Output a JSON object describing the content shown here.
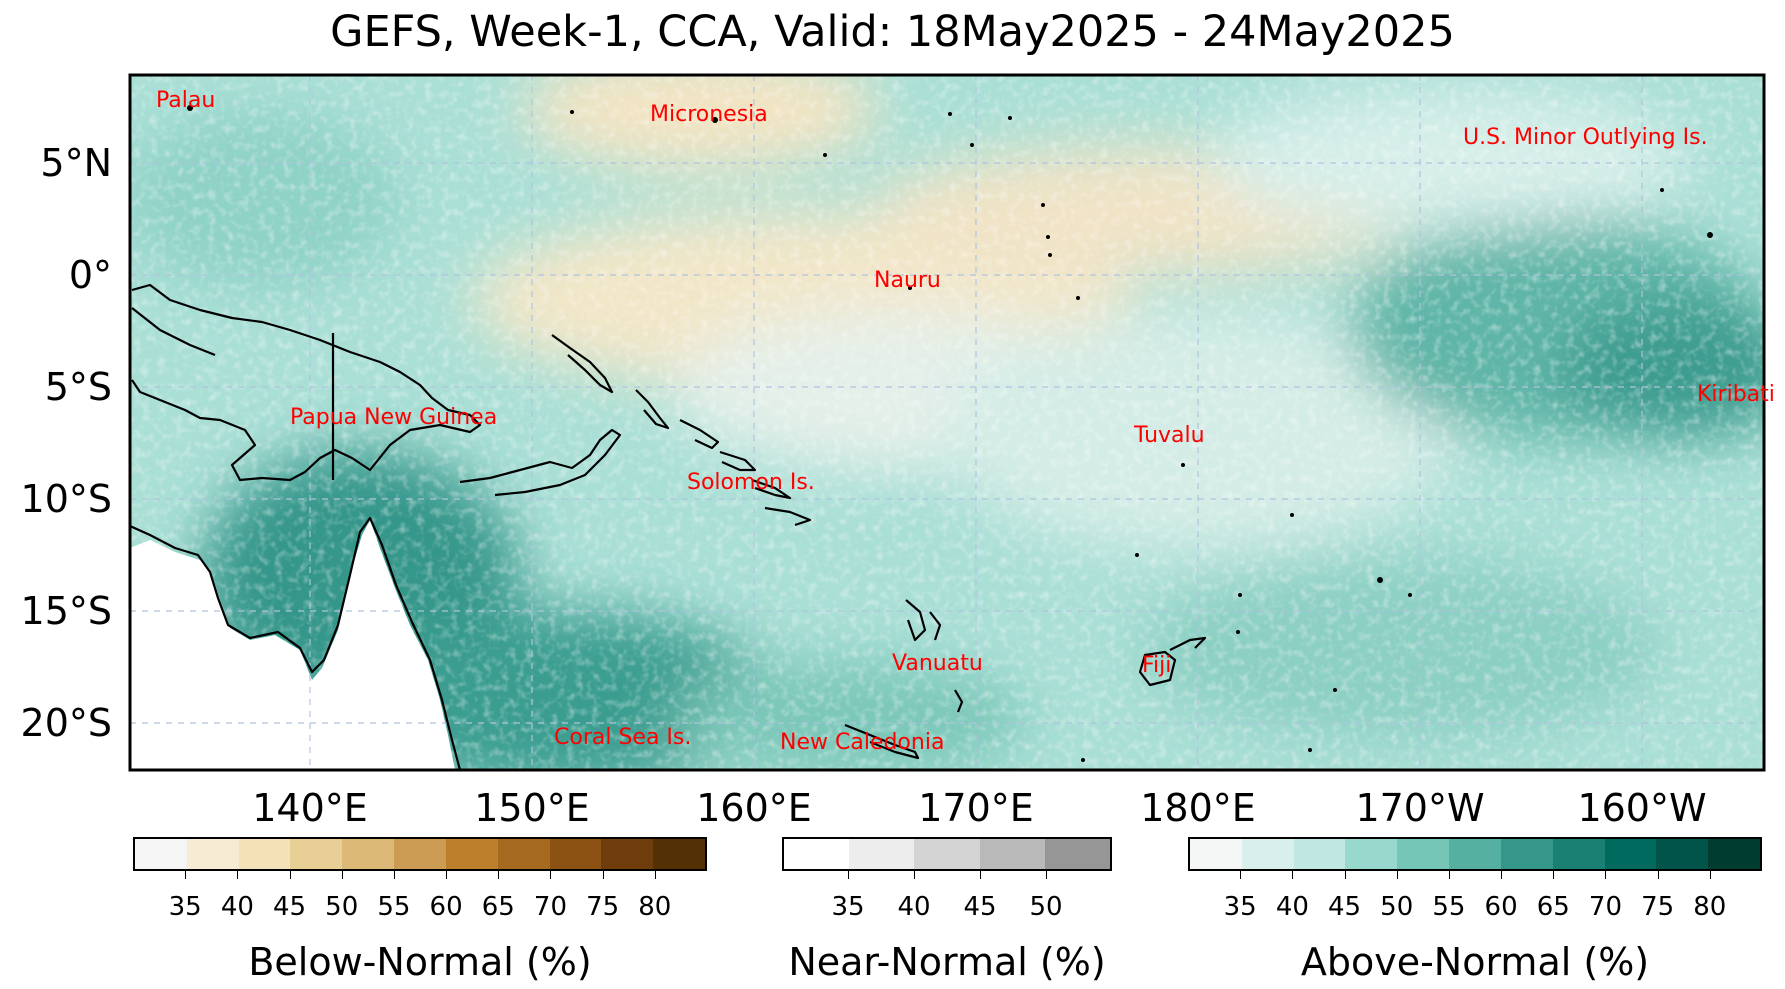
{
  "title": "GEFS, Week-1, CCA, Valid: 18May2025 - 24May2025",
  "map": {
    "lat_labels": [
      "5°N",
      "0°",
      "5°S",
      "10°S",
      "15°S",
      "20°S"
    ],
    "lon_labels": [
      "140°E",
      "150°E",
      "160°E",
      "170°E",
      "180°E",
      "170°W",
      "160°W"
    ],
    "places": [
      "Palau",
      "Micronesia",
      "U.S. Minor Outlying Is.",
      "Nauru",
      "Kiribati",
      "Papua New Guinea",
      "Tuvalu",
      "Solomon Is.",
      "Vanuatu",
      "Fiji",
      "Coral Sea Is.",
      "New Caledonia"
    ],
    "colors": {
      "land_mask": "#ffffff",
      "coastline": "#000000",
      "grid": "#b0c4de",
      "label": "#ff0000"
    }
  },
  "colorbars": [
    {
      "title": "Below-Normal (%)",
      "ticks": [
        "35",
        "40",
        "45",
        "50",
        "55",
        "60",
        "65",
        "70",
        "75",
        "80"
      ],
      "colors": [
        "#f5f5f5",
        "#f6ebd3",
        "#f3e1b8",
        "#e8cf96",
        "#ddb978",
        "#cd9c54",
        "#bc7f2c",
        "#a5691f",
        "#8c5214",
        "#6f3d0b",
        "#543005"
      ]
    },
    {
      "title": "Near-Normal (%)",
      "ticks": [
        "35",
        "40",
        "45",
        "50"
      ],
      "colors": [
        "#ffffff",
        "#ededed",
        "#d4d4d4",
        "#b9b9b9",
        "#969696"
      ]
    },
    {
      "title": "Above-Normal (%)",
      "ticks": [
        "35",
        "40",
        "45",
        "50",
        "55",
        "60",
        "65",
        "70",
        "75",
        "80"
      ],
      "colors": [
        "#f3f6f5",
        "#d8efec",
        "#c0e7e1",
        "#99d8cd",
        "#76c6b8",
        "#56b0a1",
        "#35978a",
        "#1a8074",
        "#006a5f",
        "#00544a",
        "#003c30"
      ]
    }
  ]
}
